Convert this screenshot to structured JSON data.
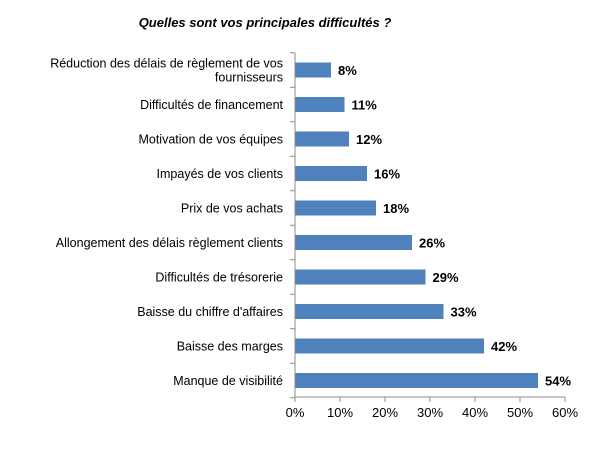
{
  "chart_data": {
    "type": "bar",
    "orientation": "horizontal",
    "title": "Quelles sont vos principales difficultés ?",
    "xlabel": "",
    "ylabel": "",
    "categories": [
      "Réduction des délais de règlement de vos fournisseurs",
      "Difficultés de financement",
      "Motivation de vos équipes",
      "Impayés de vos clients",
      "Prix de vos achats",
      "Allongement des délais règlement clients",
      "Difficultés de trésorerie",
      "Baisse du chiffre d'affaires",
      "Baisse des marges",
      "Manque de visibilité"
    ],
    "category_lines": [
      [
        "Réduction des délais de règlement de vos",
        "fournisseurs"
      ],
      [
        "Difficultés de financement"
      ],
      [
        "Motivation de vos équipes"
      ],
      [
        "Impayés de vos clients"
      ],
      [
        "Prix de vos achats"
      ],
      [
        "Allongement des délais règlement clients"
      ],
      [
        "Difficultés de trésorerie"
      ],
      [
        "Baisse du chiffre d'affaires"
      ],
      [
        "Baisse des marges"
      ],
      [
        "Manque de visibilité"
      ]
    ],
    "values": [
      8,
      11,
      12,
      16,
      18,
      26,
      29,
      33,
      42,
      54
    ],
    "value_labels": [
      "8%",
      "11%",
      "12%",
      "16%",
      "18%",
      "26%",
      "29%",
      "33%",
      "42%",
      "54%"
    ],
    "xlim": [
      0,
      60
    ],
    "xticks": [
      0,
      10,
      20,
      30,
      40,
      50,
      60
    ],
    "xtick_labels": [
      "0%",
      "10%",
      "20%",
      "30%",
      "40%",
      "50%",
      "60%"
    ],
    "grid": false,
    "legend": "none",
    "bar_color": "#4f81bd"
  }
}
